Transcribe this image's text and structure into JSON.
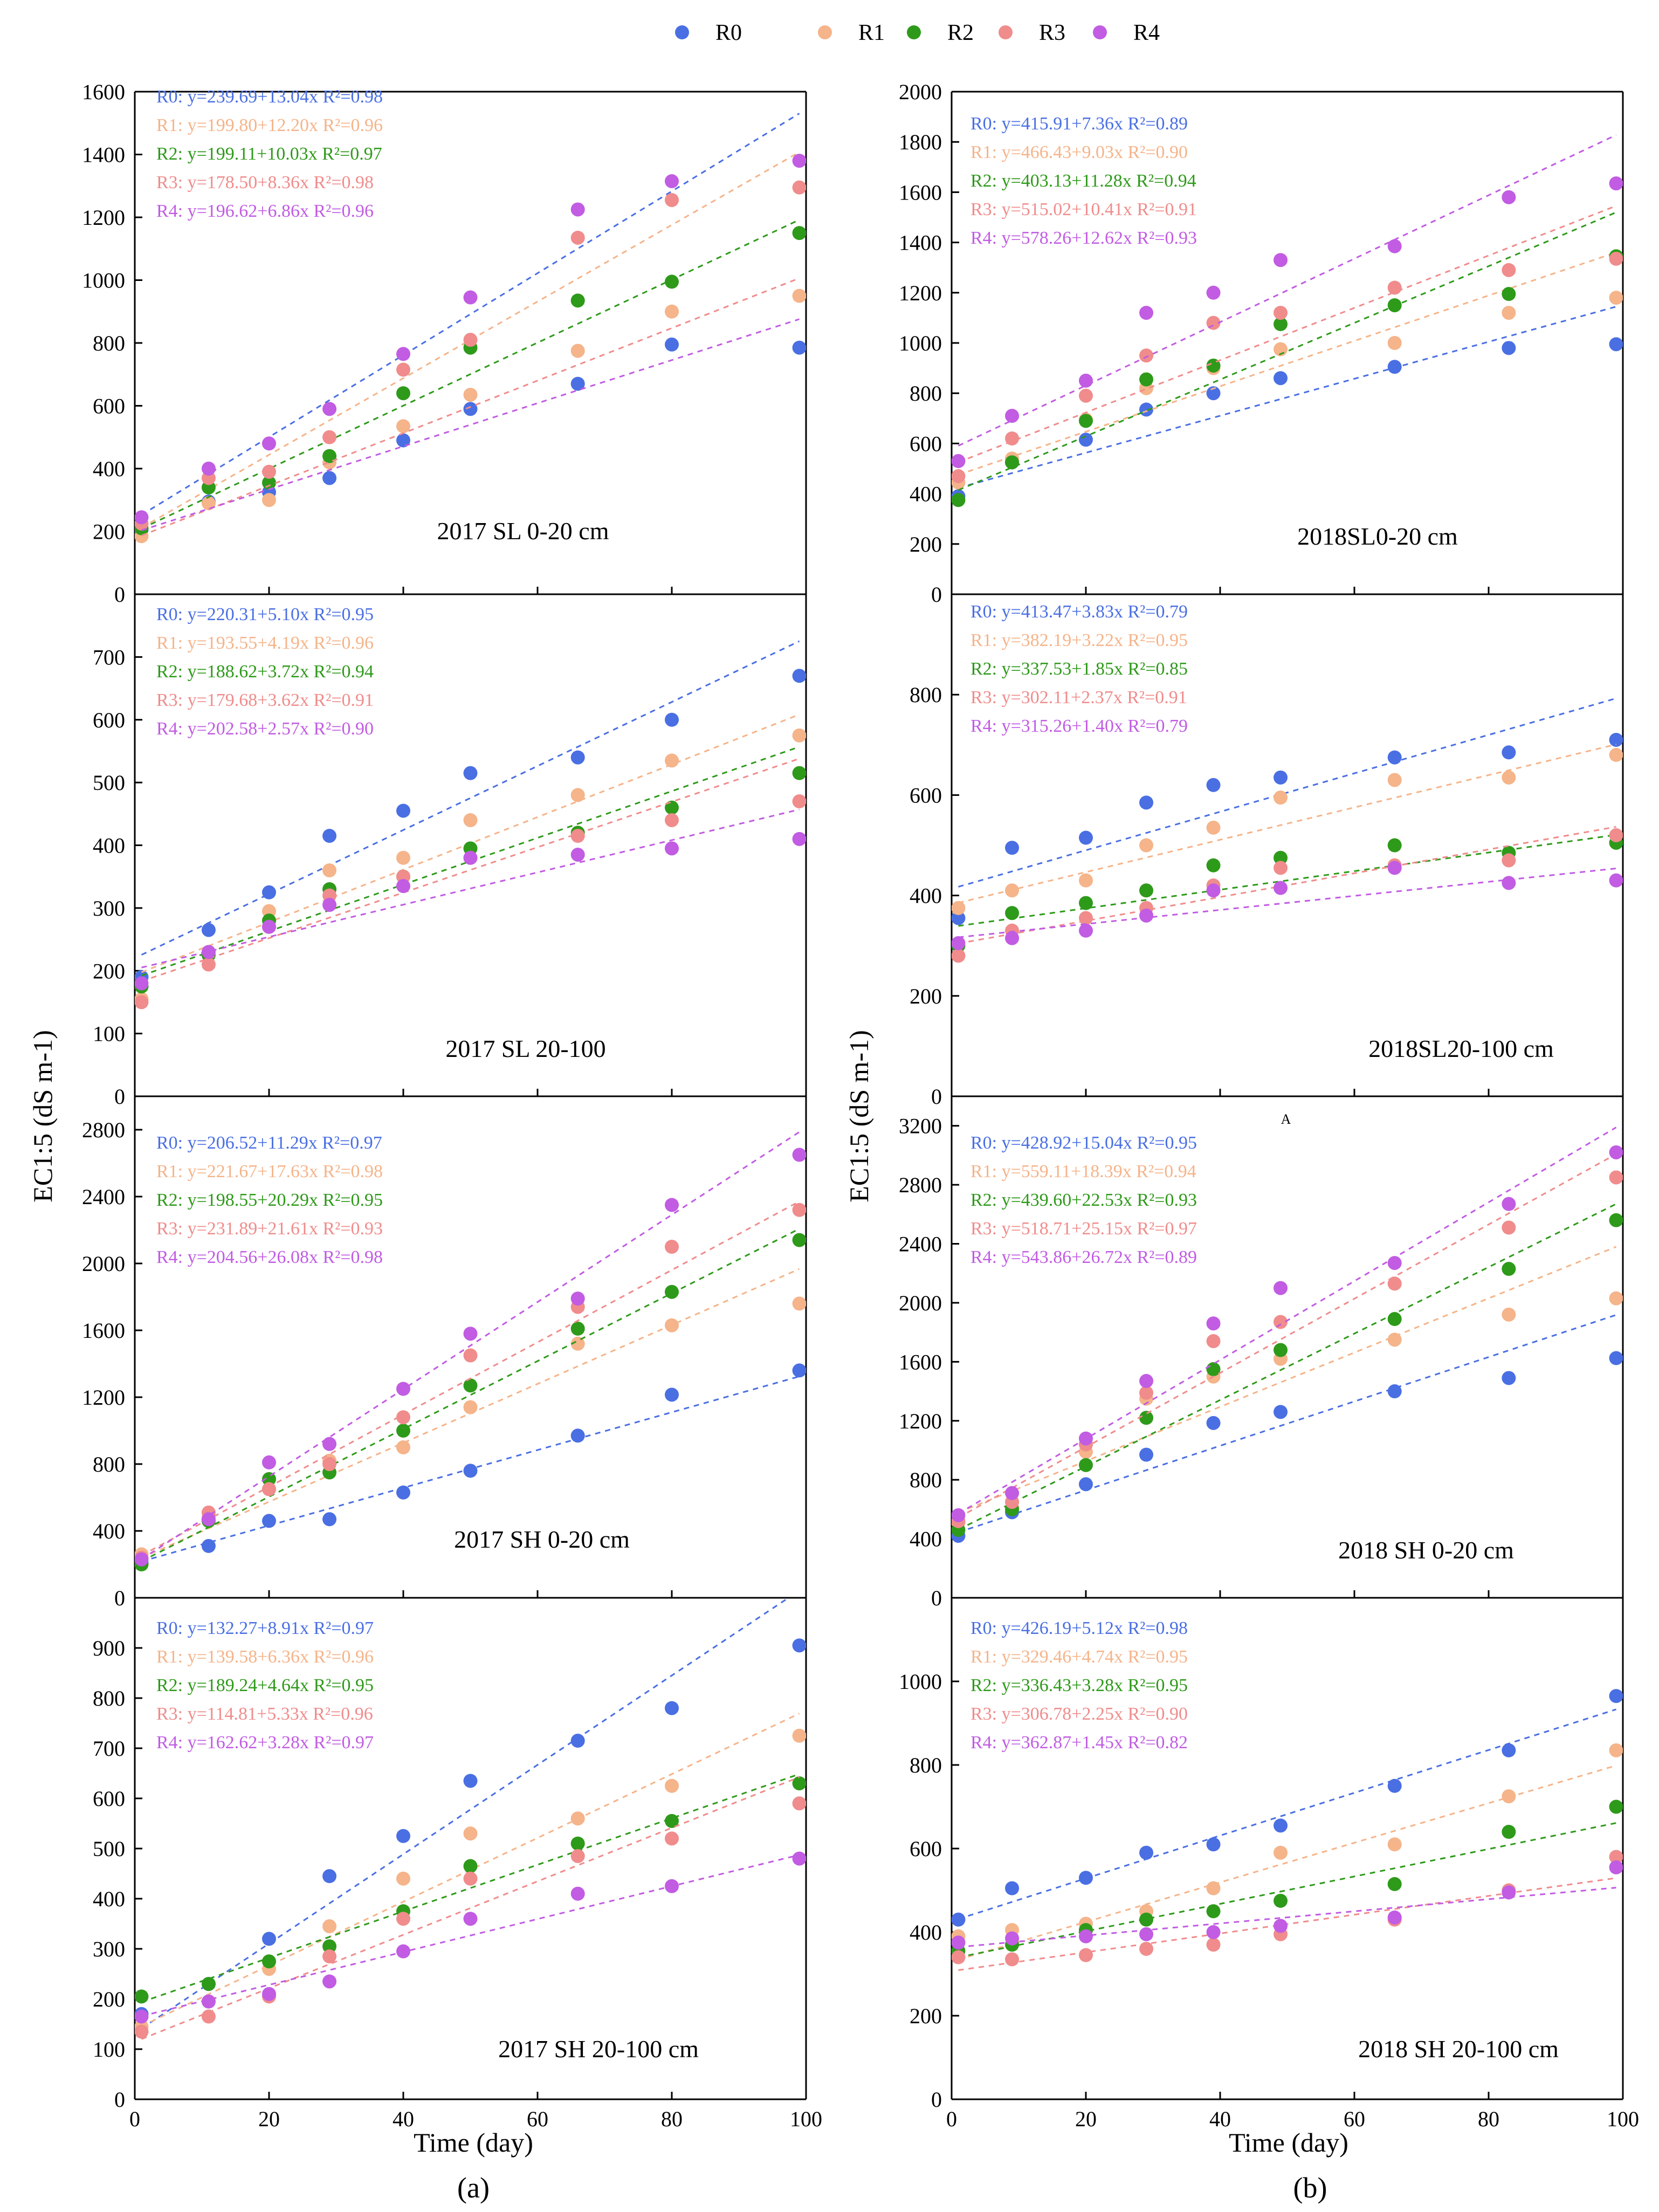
{
  "legend": {
    "series": [
      "R0",
      "R1",
      "R2",
      "R3",
      "R4"
    ],
    "colors": [
      "#4a6fe3",
      "#f5b48a",
      "#2e9a1a",
      "#f08c8c",
      "#c15ce3"
    ]
  },
  "y_axis_title_a": "EC1:5 (dS m-1)",
  "y_axis_title_b": "EC1:5 (dS m-1)",
  "x_axis_title_a": "Time (day)",
  "x_axis_title_b": "Time (day)",
  "subfigure_a": "(a)",
  "subfigure_b": "(b)",
  "stray_mark": "A",
  "chart_data": [
    {
      "type": "scatter",
      "title": "2017 SL 0-20 cm",
      "column": "a",
      "row": 0,
      "xlabel": "Time (day)",
      "ylabel": "EC1:5 (dS m-1)",
      "xlim": [
        0,
        100
      ],
      "ylim": [
        0,
        1600
      ],
      "yticks": [
        0,
        200,
        400,
        600,
        800,
        1000,
        1200,
        1400,
        1600
      ],
      "x": [
        1,
        11,
        20,
        29,
        40,
        50,
        66,
        80,
        99
      ],
      "series": [
        {
          "name": "R0",
          "values": [
            205,
            295,
            325,
            370,
            490,
            590,
            670,
            795,
            785
          ],
          "intercept": 239.69,
          "slope": 13.04,
          "equation": "R0: y=239.69+13.04x R²=0.98"
        },
        {
          "name": "R1",
          "values": [
            185,
            290,
            300,
            420,
            535,
            635,
            775,
            900,
            950
          ],
          "intercept": 199.8,
          "slope": 12.2,
          "equation": "R1: y=199.80+12.20x R²=0.96"
        },
        {
          "name": "R2",
          "values": [
            210,
            340,
            355,
            440,
            640,
            785,
            935,
            995,
            1150
          ],
          "intercept": 199.11,
          "slope": 10.03,
          "equation": "R2: y=199.11+10.03x R²=0.97"
        },
        {
          "name": "R3",
          "values": [
            225,
            370,
            390,
            500,
            715,
            810,
            1135,
            1255,
            1295
          ],
          "intercept": 178.5,
          "slope": 8.36,
          "equation": "R3: y=178.50+8.36x R²=0.98"
        },
        {
          "name": "R4",
          "values": [
            245,
            400,
            480,
            590,
            765,
            945,
            1225,
            1315,
            1380
          ],
          "intercept": 196.62,
          "slope": 6.86,
          "equation": "R4: y=196.62+6.86x  R²=0.96"
        }
      ]
    },
    {
      "type": "scatter",
      "title": "2018SL0-20 cm",
      "column": "b",
      "row": 0,
      "xlabel": "Time (day)",
      "ylabel": "EC1:5 (dS m-1)",
      "xlim": [
        0,
        100
      ],
      "ylim": [
        0,
        2000
      ],
      "yticks": [
        0,
        200,
        400,
        600,
        800,
        1000,
        1200,
        1400,
        1600,
        1800,
        2000
      ],
      "x": [
        1,
        9,
        20,
        29,
        39,
        49,
        66,
        83,
        99
      ],
      "series": [
        {
          "name": "R0",
          "values": [
            390,
            525,
            615,
            735,
            800,
            860,
            905,
            980,
            995
          ],
          "intercept": 415.91,
          "slope": 7.36,
          "equation": "R0: y=415.91+7.36x  R²=0.89"
        },
        {
          "name": "R1",
          "values": [
            445,
            540,
            695,
            820,
            900,
            975,
            1000,
            1120,
            1180
          ],
          "intercept": 466.43,
          "slope": 9.03,
          "equation": "R1: y=466.43+9.03x  R²=0.90"
        },
        {
          "name": "R2",
          "values": [
            375,
            525,
            690,
            855,
            910,
            1075,
            1150,
            1195,
            1345
          ],
          "intercept": 403.13,
          "slope": 11.28,
          "equation": "R2: y=403.13+11.28x R²=0.94"
        },
        {
          "name": "R3",
          "values": [
            470,
            620,
            790,
            950,
            1080,
            1120,
            1220,
            1290,
            1335
          ],
          "intercept": 515.02,
          "slope": 10.41,
          "equation": "R3: y=515.02+10.41x R²=0.91"
        },
        {
          "name": "R4",
          "values": [
            530,
            710,
            850,
            1120,
            1200,
            1330,
            1385,
            1580,
            1635
          ],
          "intercept": 578.26,
          "slope": 12.62,
          "equation": "R4: y=578.26+12.62x R²=0.93"
        }
      ]
    },
    {
      "type": "scatter",
      "title": "2017 SL 20-100",
      "column": "a",
      "row": 1,
      "xlabel": "Time (day)",
      "ylabel": "EC1:5 (dS m-1)",
      "xlim": [
        0,
        100
      ],
      "ylim": [
        0,
        800
      ],
      "yticks": [
        0,
        100,
        200,
        300,
        400,
        500,
        600,
        700
      ],
      "x": [
        1,
        11,
        20,
        29,
        40,
        50,
        66,
        80,
        99
      ],
      "series": [
        {
          "name": "R0",
          "values": [
            190,
            265,
            325,
            415,
            455,
            515,
            540,
            600,
            670
          ],
          "intercept": 220.31,
          "slope": 5.1,
          "equation": "R0: y=220.31+5.10x R²=0.95"
        },
        {
          "name": "R1",
          "values": [
            155,
            230,
            295,
            360,
            380,
            440,
            480,
            535,
            575
          ],
          "intercept": 193.55,
          "slope": 4.19,
          "equation": "R1: y=193.55+4.19x R²=0.96"
        },
        {
          "name": "R2",
          "values": [
            175,
            225,
            280,
            330,
            350,
            395,
            420,
            460,
            515
          ],
          "intercept": 188.62,
          "slope": 3.72,
          "equation": "R2: y=188.62+3.72x R²=0.94"
        },
        {
          "name": "R3",
          "values": [
            150,
            210,
            270,
            320,
            350,
            380,
            415,
            440,
            470
          ],
          "intercept": 179.68,
          "slope": 3.62,
          "equation": "R3: y=179.68+3.62x R²=0.91"
        },
        {
          "name": "R4",
          "values": [
            180,
            230,
            270,
            305,
            335,
            380,
            385,
            395,
            410
          ],
          "intercept": 202.58,
          "slope": 2.57,
          "equation": "R4: y=202.58+2.57x R²=0.90"
        }
      ]
    },
    {
      "type": "scatter",
      "title": "2018SL20-100 cm",
      "column": "b",
      "row": 1,
      "xlabel": "Time (day)",
      "ylabel": "EC1:5 (dS m-1)",
      "xlim": [
        0,
        100
      ],
      "ylim": [
        0,
        1000
      ],
      "yticks": [
        0,
        200,
        400,
        600,
        800
      ],
      "x": [
        1,
        9,
        20,
        29,
        39,
        49,
        66,
        83,
        99
      ],
      "series": [
        {
          "name": "R0",
          "values": [
            355,
            495,
            515,
            585,
            620,
            635,
            675,
            685,
            710
          ],
          "intercept": 413.47,
          "slope": 3.83,
          "equation": "R0: y=413.47+3.83x R²=0.79"
        },
        {
          "name": "R1",
          "values": [
            375,
            410,
            430,
            500,
            535,
            595,
            630,
            635,
            680
          ],
          "intercept": 382.19,
          "slope": 3.22,
          "equation": "R1: y=382.19+3.22x R²=0.95"
        },
        {
          "name": "R2",
          "values": [
            300,
            365,
            385,
            410,
            460,
            475,
            500,
            485,
            505
          ],
          "intercept": 337.53,
          "slope": 1.85,
          "equation": "R2: y=337.53+1.85x R²=0.85"
        },
        {
          "name": "R3",
          "values": [
            280,
            330,
            355,
            375,
            420,
            455,
            460,
            470,
            520
          ],
          "intercept": 302.11,
          "slope": 2.37,
          "equation": "R3: y=302.11+2.37x R²=0.91"
        },
        {
          "name": "R4",
          "values": [
            305,
            315,
            330,
            360,
            410,
            415,
            455,
            425,
            430
          ],
          "intercept": 315.26,
          "slope": 1.4,
          "equation": "R4: y=315.26+1.40x R²=0.79"
        }
      ]
    },
    {
      "type": "scatter",
      "title": "2017 SH 0-20 cm",
      "column": "a",
      "row": 2,
      "xlabel": "Time (day)",
      "ylabel": "EC1:5 (dS m-1)",
      "xlim": [
        0,
        100
      ],
      "ylim": [
        0,
        3000
      ],
      "yticks": [
        0,
        400,
        800,
        1200,
        1600,
        2000,
        2400,
        2800
      ],
      "x": [
        1,
        11,
        20,
        29,
        40,
        50,
        66,
        80,
        99
      ],
      "series": [
        {
          "name": "R0",
          "values": [
            210,
            310,
            460,
            470,
            630,
            760,
            970,
            1215,
            1360
          ],
          "intercept": 206.52,
          "slope": 11.29,
          "equation": "R0: y=206.52+11.29x R²=0.97"
        },
        {
          "name": "R1",
          "values": [
            260,
            480,
            650,
            820,
            900,
            1140,
            1520,
            1630,
            1760
          ],
          "intercept": 221.67,
          "slope": 17.63,
          "equation": "R1: y=221.67+17.63x R²=0.98"
        },
        {
          "name": "R2",
          "values": [
            200,
            460,
            710,
            750,
            1000,
            1270,
            1610,
            1830,
            2140
          ],
          "intercept": 198.55,
          "slope": 20.29,
          "equation": "R2: y=198.55+20.29x R²=0.95"
        },
        {
          "name": "R3",
          "values": [
            240,
            510,
            650,
            800,
            1080,
            1450,
            1740,
            2100,
            2320
          ],
          "intercept": 231.89,
          "slope": 21.61,
          "equation": "R3: y=231.89+21.61x R²=0.93"
        },
        {
          "name": "R4",
          "values": [
            230,
            470,
            810,
            920,
            1250,
            1580,
            1790,
            2350,
            2650
          ],
          "intercept": 204.56,
          "slope": 26.08,
          "equation": "R4: y=204.56+26.08x R²=0.98"
        }
      ]
    },
    {
      "type": "scatter",
      "title": "2018 SH 0-20 cm",
      "column": "b",
      "row": 2,
      "xlabel": "Time (day)",
      "ylabel": "EC1:5 (dS m-1)",
      "xlim": [
        0,
        100
      ],
      "ylim": [
        0,
        3400
      ],
      "yticks": [
        0,
        400,
        800,
        1200,
        1600,
        2000,
        2400,
        2800,
        3200
      ],
      "x": [
        1,
        9,
        20,
        29,
        39,
        49,
        66,
        83,
        99
      ],
      "series": [
        {
          "name": "R0",
          "values": [
            420,
            580,
            770,
            970,
            1185,
            1260,
            1400,
            1490,
            1625
          ],
          "intercept": 428.92,
          "slope": 15.04,
          "equation": "R0: y=428.92+15.04x R²=0.95"
        },
        {
          "name": "R1",
          "values": [
            510,
            610,
            990,
            1350,
            1500,
            1620,
            1750,
            1920,
            2030
          ],
          "intercept": 559.11,
          "slope": 18.39,
          "equation": "R1: y=559.11+18.39x R²=0.94"
        },
        {
          "name": "R2",
          "values": [
            460,
            600,
            900,
            1220,
            1550,
            1680,
            1890,
            2230,
            2560
          ],
          "intercept": 439.6,
          "slope": 22.53,
          "equation": "R2: y=439.60+22.53x R²=0.93"
        },
        {
          "name": "R3",
          "values": [
            520,
            650,
            1040,
            1390,
            1740,
            1870,
            2130,
            2510,
            2850
          ],
          "intercept": 518.71,
          "slope": 25.15,
          "equation": "R3: y=518.71+25.15x R²=0.97"
        },
        {
          "name": "R4",
          "values": [
            560,
            710,
            1080,
            1470,
            1860,
            2100,
            2270,
            2670,
            3020
          ],
          "intercept": 543.86,
          "slope": 26.72,
          "equation": "R4: y=543.86+26.72x R²=0.89"
        }
      ]
    },
    {
      "type": "scatter",
      "title": "2017 SH 20-100 cm",
      "column": "a",
      "row": 3,
      "xlabel": "Time (day)",
      "ylabel": "EC1:5 (dS m-1)",
      "xlim": [
        0,
        100
      ],
      "ylim": [
        0,
        1000
      ],
      "yticks": [
        0,
        100,
        200,
        300,
        400,
        500,
        600,
        700,
        800,
        900
      ],
      "x": [
        1,
        11,
        20,
        29,
        40,
        50,
        66,
        80,
        99
      ],
      "series": [
        {
          "name": "R0",
          "values": [
            170,
            230,
            320,
            445,
            525,
            635,
            715,
            780,
            905
          ],
          "intercept": 132.27,
          "slope": 8.91,
          "equation": "R0: y=132.27+8.91x R²=0.97"
        },
        {
          "name": "R1",
          "values": [
            145,
            195,
            260,
            345,
            440,
            530,
            560,
            625,
            725
          ],
          "intercept": 139.58,
          "slope": 6.36,
          "equation": "R1: y=139.58+6.36x R²=0.96"
        },
        {
          "name": "R2",
          "values": [
            205,
            230,
            275,
            305,
            375,
            465,
            510,
            555,
            630
          ],
          "intercept": 189.24,
          "slope": 4.64,
          "equation": "R2: y=189.24+4.64x R²=0.95"
        },
        {
          "name": "R3",
          "values": [
            135,
            165,
            205,
            285,
            360,
            440,
            485,
            520,
            590
          ],
          "intercept": 114.81,
          "slope": 5.33,
          "equation": "R3: y=114.81+5.33x R²=0.96"
        },
        {
          "name": "R4",
          "values": [
            165,
            195,
            210,
            235,
            295,
            360,
            410,
            425,
            480
          ],
          "intercept": 162.62,
          "slope": 3.28,
          "equation": "R4: y=162.62+3.28x R²=0.97"
        }
      ]
    },
    {
      "type": "scatter",
      "title": "2018 SH 20-100 cm",
      "column": "b",
      "row": 3,
      "xlabel": "Time (day)",
      "ylabel": "EC1:5 (dS m-1)",
      "xlim": [
        0,
        100
      ],
      "ylim": [
        0,
        1200
      ],
      "yticks": [
        0,
        200,
        400,
        600,
        800,
        1000
      ],
      "x": [
        1,
        9,
        20,
        29,
        39,
        49,
        66,
        83,
        99
      ],
      "series": [
        {
          "name": "R0",
          "values": [
            430,
            505,
            530,
            590,
            610,
            655,
            750,
            835,
            965
          ],
          "intercept": 426.19,
          "slope": 5.12,
          "equation": "R0: y=426.19+5.12x R²=0.98"
        },
        {
          "name": "R1",
          "values": [
            390,
            405,
            420,
            450,
            505,
            590,
            610,
            725,
            835
          ],
          "intercept": 329.46,
          "slope": 4.74,
          "equation": "R1: y=329.46+4.74x R²=0.95"
        },
        {
          "name": "R2",
          "values": [
            355,
            370,
            405,
            430,
            450,
            475,
            515,
            640,
            700
          ],
          "intercept": 336.43,
          "slope": 3.28,
          "equation": "R2: y=336.43+3.28x R²=0.95"
        },
        {
          "name": "R3",
          "values": [
            340,
            335,
            345,
            360,
            370,
            395,
            430,
            500,
            580
          ],
          "intercept": 306.78,
          "slope": 2.25,
          "equation": "R3: y=306.78+2.25x R²=0.90"
        },
        {
          "name": "R4",
          "values": [
            375,
            385,
            390,
            395,
            400,
            415,
            435,
            495,
            555
          ],
          "intercept": 362.87,
          "slope": 1.45,
          "equation": "R4: y=362.87+1.45x R²=0.82"
        }
      ]
    }
  ]
}
